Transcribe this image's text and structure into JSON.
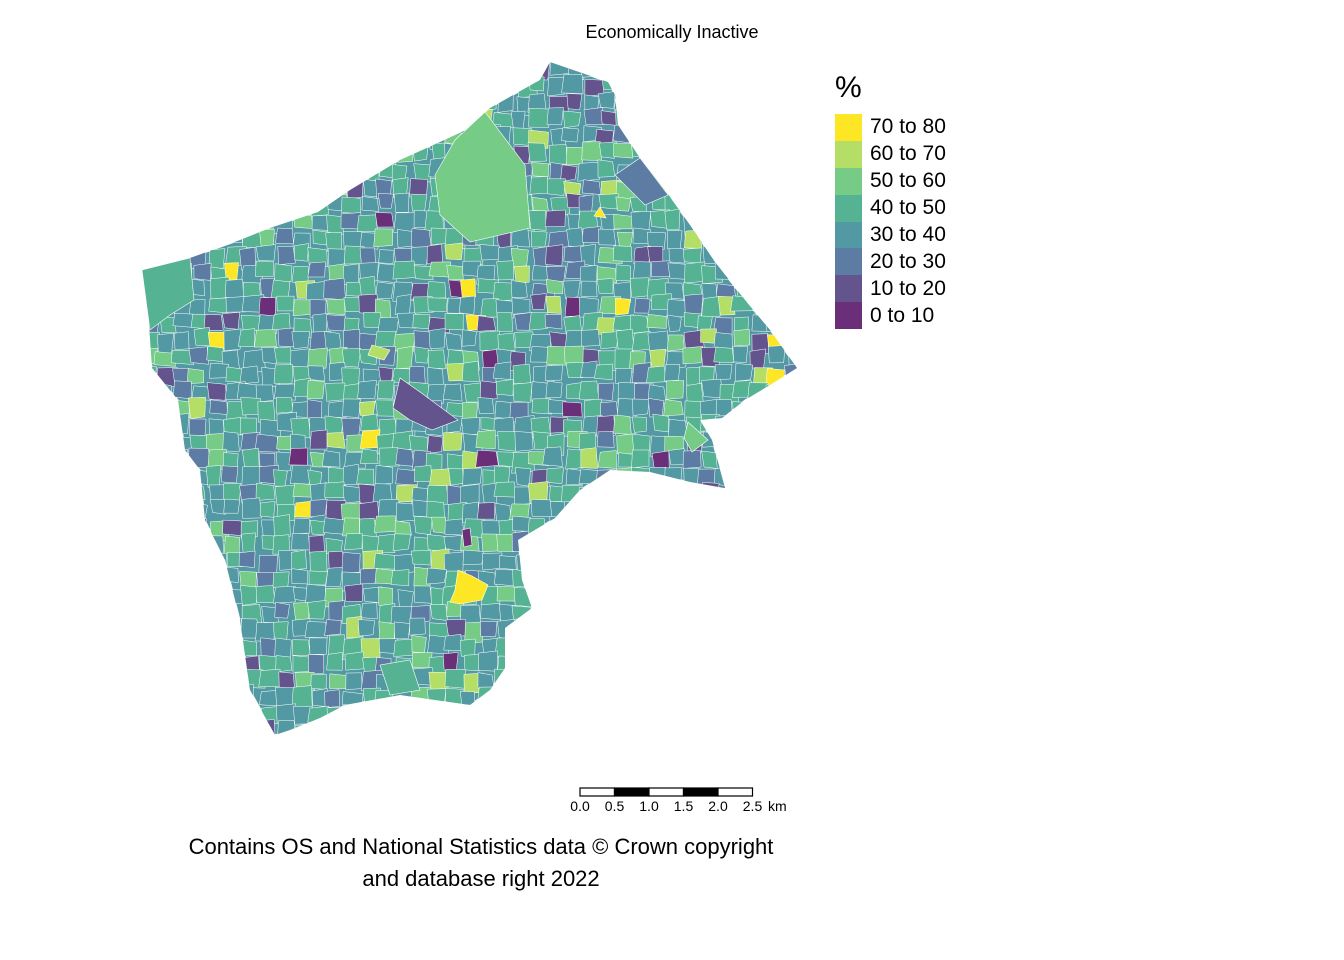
{
  "title": "Economically Inactive",
  "legend": {
    "title": "%",
    "items": [
      {
        "label": "70 to 80",
        "color": "#FDE725"
      },
      {
        "label": "60 to 70",
        "color": "#B5DE66"
      },
      {
        "label": "50 to 60",
        "color": "#76CC87"
      },
      {
        "label": "40 to 50",
        "color": "#55B394"
      },
      {
        "label": "30 to 40",
        "color": "#5399A3"
      },
      {
        "label": "20 to 30",
        "color": "#5C7CA3"
      },
      {
        "label": "10 to 20",
        "color": "#63548E"
      },
      {
        "label": "0 to 10",
        "color": "#6A2F78"
      }
    ]
  },
  "scalebar": {
    "ticks": [
      "0.0",
      "0.5",
      "1.0",
      "1.5",
      "2.0",
      "2.5"
    ],
    "unit": "km"
  },
  "attribution": {
    "line1": "Contains OS and National Statistics data © Crown copyright",
    "line2": "and database right 2022"
  }
}
